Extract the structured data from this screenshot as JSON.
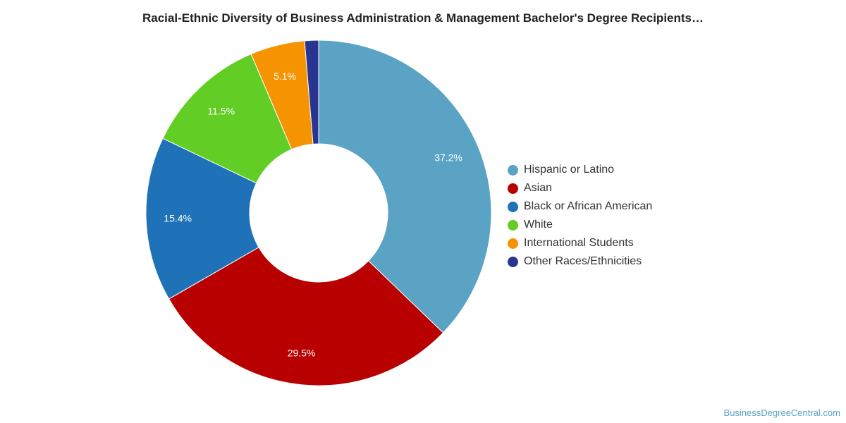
{
  "chart_data": {
    "type": "pie",
    "variant": "donut",
    "title": "Racial-Ethnic Diversity of Business Administration & Management Bachelor's Degree Recipients…",
    "legend_position": "right",
    "slices": [
      {
        "label": "Hispanic or Latino",
        "value": 37.2,
        "display": "37.2%",
        "color": "#5ba3c4"
      },
      {
        "label": "Asian",
        "value": 29.5,
        "display": "29.5%",
        "color": "#b80000"
      },
      {
        "label": "Black or African American",
        "value": 15.4,
        "display": "15.4%",
        "color": "#1f72b8"
      },
      {
        "label": "White",
        "value": 11.5,
        "display": "11.5%",
        "color": "#62cd24"
      },
      {
        "label": "International Students",
        "value": 5.1,
        "display": "5.1%",
        "color": "#f59300"
      },
      {
        "label": "Other Races/Ethnicities",
        "value": 1.3,
        "display": "",
        "color": "#293590"
      }
    ]
  },
  "watermark": "BusinessDegreeCentral.com"
}
